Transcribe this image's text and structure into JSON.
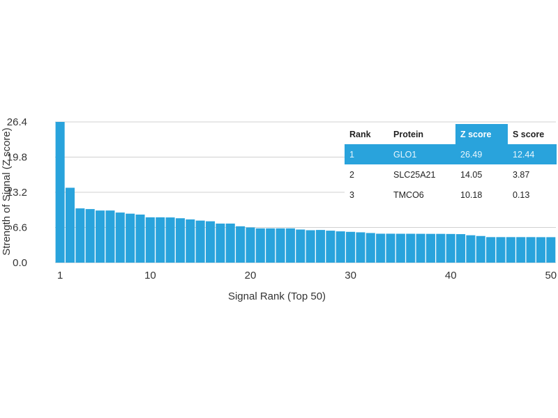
{
  "chart_data": {
    "type": "bar",
    "xlabel": "Signal Rank (Top 50)",
    "ylabel": "Strength of Signal (Z score)",
    "ylim": [
      0,
      26.4
    ],
    "yticks": [
      "0.0",
      "6.6",
      "13.2",
      "19.8",
      "26.4"
    ],
    "xticks": [
      1,
      10,
      20,
      30,
      40,
      50
    ],
    "grid": true,
    "color": "#29a3dc",
    "x": [
      1,
      2,
      3,
      4,
      5,
      6,
      7,
      8,
      9,
      10,
      11,
      12,
      13,
      14,
      15,
      16,
      17,
      18,
      19,
      20,
      21,
      22,
      23,
      24,
      25,
      26,
      27,
      28,
      29,
      30,
      31,
      32,
      33,
      34,
      35,
      36,
      37,
      38,
      39,
      40,
      41,
      42,
      43,
      44,
      45,
      46,
      47,
      48,
      49,
      50
    ],
    "values": [
      26.49,
      14.05,
      10.18,
      10.05,
      9.78,
      9.78,
      9.4,
      9.19,
      9.02,
      8.5,
      8.5,
      8.48,
      8.33,
      8.11,
      7.89,
      7.76,
      7.33,
      7.33,
      6.82,
      6.6,
      6.43,
      6.43,
      6.43,
      6.43,
      6.21,
      6.08,
      6.13,
      6.0,
      5.87,
      5.78,
      5.69,
      5.56,
      5.43,
      5.43,
      5.42,
      5.42,
      5.41,
      5.4,
      5.4,
      5.38,
      5.35,
      5.14,
      5.0,
      4.79,
      4.79,
      4.79,
      4.79,
      4.79,
      4.78,
      4.78
    ]
  },
  "table": {
    "headers": [
      "Rank",
      "Protein",
      "Z score",
      "S score"
    ],
    "rows": [
      [
        "1",
        "GLO1",
        "26.49",
        "12.44"
      ],
      [
        "2",
        "SLC25A21",
        "14.05",
        "3.87"
      ],
      [
        "3",
        "TMCO6",
        "10.18",
        "0.13"
      ]
    ],
    "highlight_color": "#29a3dc"
  }
}
